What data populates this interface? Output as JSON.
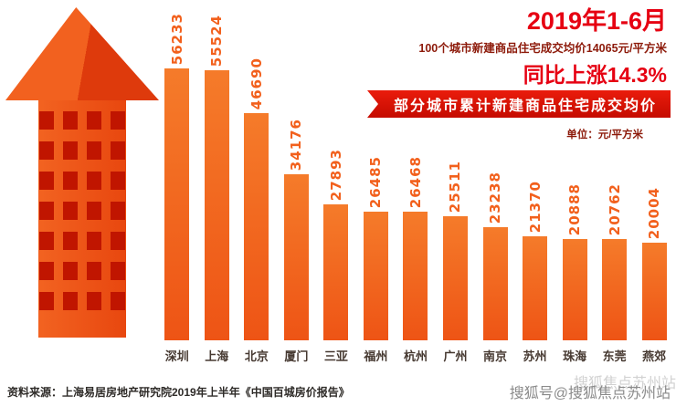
{
  "header": {
    "title": "2019年1-6月",
    "subtitle": "100个城市新建商品住宅成交均价14065元/平方米",
    "growth": "同比上涨14.3%"
  },
  "banner": {
    "label": "部分城市累计新建商品住宅成交均价",
    "unit": "单位：元/平方米"
  },
  "chart_data": {
    "type": "bar",
    "title": "部分城市累计新建商品住宅成交均价",
    "unit": "元/平方米",
    "categories": [
      "深圳",
      "上海",
      "北京",
      "厦门",
      "三亚",
      "福州",
      "杭州",
      "广州",
      "南京",
      "苏州",
      "珠海",
      "东莞",
      "燕郊"
    ],
    "values": [
      56233,
      55524,
      46690,
      34176,
      27893,
      26485,
      26468,
      25511,
      23238,
      21370,
      20888,
      20762,
      20004
    ],
    "ylim": [
      0,
      56233
    ],
    "bar_color": "#f0601a",
    "value_label_color": "#f2601c",
    "legend": "none",
    "grid": false
  },
  "footer": {
    "source": "资料来源：上海易居房地产研究院2019年上半年《中国百城房价报告》",
    "watermark_primary": "搜狐号@搜狐焦点苏州站",
    "watermark_secondary": "搜狐焦点苏州站"
  },
  "colors": {
    "accent_red": "#e60012",
    "dark_red": "#8d1a0a",
    "banner_red": "#d90f00",
    "bar_orange": "#f0601a",
    "arrow_orange": "#ef5318",
    "window_red": "#c01500"
  }
}
